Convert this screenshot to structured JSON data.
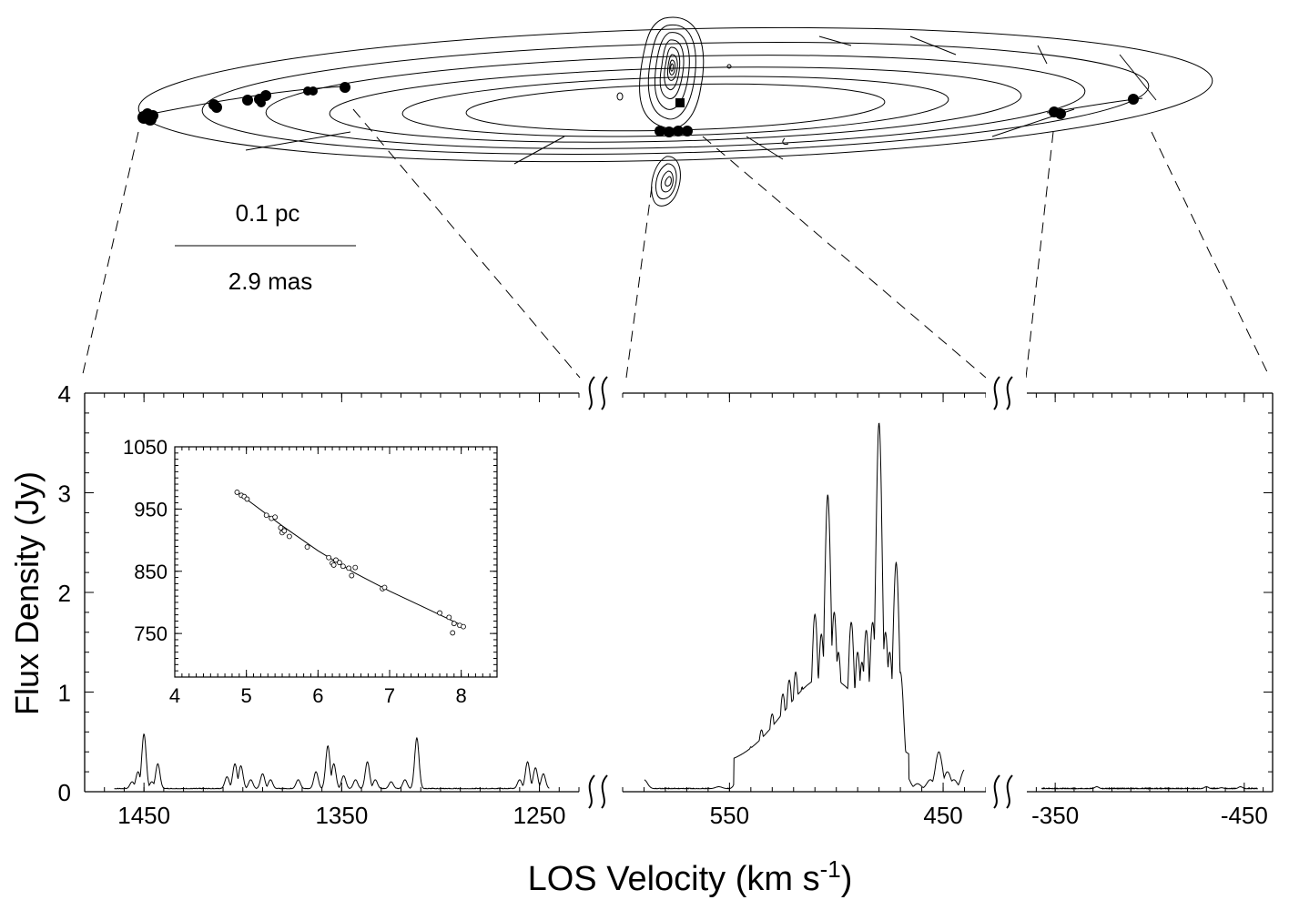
{
  "disk_panel": {
    "scale_bar_top": "0.1 pc",
    "scale_bar_bottom": "2.9 mas"
  },
  "chart_data": {
    "type": "line",
    "xlabel": "LOS Velocity (km s",
    "xlabel_sup": "-1",
    "xlabel_close": ")",
    "ylabel": "Flux Density (Jy)",
    "ylim": [
      0,
      4
    ],
    "yticks": [
      0,
      1,
      2,
      3,
      4
    ],
    "panels": [
      {
        "name": "redshifted",
        "xlim": [
          1480,
          1230
        ],
        "xticks": [
          "1450",
          "1350",
          "1250"
        ],
        "xtick_values": [
          1450,
          1350,
          1250
        ],
        "peaks": [
          {
            "x": 1456,
            "y": 0.1
          },
          {
            "x": 1453,
            "y": 0.2
          },
          {
            "x": 1450,
            "y": 0.58
          },
          {
            "x": 1446,
            "y": 0.1
          },
          {
            "x": 1443,
            "y": 0.28
          },
          {
            "x": 1408,
            "y": 0.15
          },
          {
            "x": 1404,
            "y": 0.28
          },
          {
            "x": 1401,
            "y": 0.26
          },
          {
            "x": 1396,
            "y": 0.12
          },
          {
            "x": 1390,
            "y": 0.18
          },
          {
            "x": 1386,
            "y": 0.12
          },
          {
            "x": 1372,
            "y": 0.12
          },
          {
            "x": 1363,
            "y": 0.2
          },
          {
            "x": 1357,
            "y": 0.46
          },
          {
            "x": 1354,
            "y": 0.28
          },
          {
            "x": 1349,
            "y": 0.16
          },
          {
            "x": 1343,
            "y": 0.12
          },
          {
            "x": 1337,
            "y": 0.3
          },
          {
            "x": 1333,
            "y": 0.12
          },
          {
            "x": 1325,
            "y": 0.1
          },
          {
            "x": 1318,
            "y": 0.12
          },
          {
            "x": 1312,
            "y": 0.54
          },
          {
            "x": 1260,
            "y": 0.12
          },
          {
            "x": 1256,
            "y": 0.3
          },
          {
            "x": 1252,
            "y": 0.24
          },
          {
            "x": 1248,
            "y": 0.18
          },
          {
            "x": 1242,
            "y": 0.14
          },
          {
            "x": 1238,
            "y": 0.16
          }
        ]
      },
      {
        "name": "systemic",
        "xlim": [
          600,
          430
        ],
        "xticks": [
          "550",
          "450"
        ],
        "xtick_values": [
          550,
          450
        ],
        "peaks": [
          {
            "x": 590,
            "y": 0.12
          },
          {
            "x": 555,
            "y": 0.05
          },
          {
            "x": 545,
            "y": 0.28
          },
          {
            "x": 540,
            "y": 0.45
          },
          {
            "x": 535,
            "y": 0.62
          },
          {
            "x": 530,
            "y": 0.78
          },
          {
            "x": 525,
            "y": 0.98
          },
          {
            "x": 522,
            "y": 1.12
          },
          {
            "x": 519,
            "y": 1.2
          },
          {
            "x": 516,
            "y": 1.05
          },
          {
            "x": 513,
            "y": 0.82
          },
          {
            "x": 510,
            "y": 1.78
          },
          {
            "x": 507,
            "y": 1.58
          },
          {
            "x": 504,
            "y": 2.98
          },
          {
            "x": 501,
            "y": 1.8
          },
          {
            "x": 499,
            "y": 1.4
          },
          {
            "x": 496,
            "y": 0.92
          },
          {
            "x": 493,
            "y": 1.7
          },
          {
            "x": 490,
            "y": 1.4
          },
          {
            "x": 488,
            "y": 1.3
          },
          {
            "x": 486,
            "y": 1.62
          },
          {
            "x": 483,
            "y": 1.7
          },
          {
            "x": 480,
            "y": 3.7
          },
          {
            "x": 477,
            "y": 1.6
          },
          {
            "x": 475,
            "y": 1.4
          },
          {
            "x": 472,
            "y": 2.3
          },
          {
            "x": 470,
            "y": 1.2
          },
          {
            "x": 467,
            "y": 0.15
          },
          {
            "x": 462,
            "y": 0.08
          },
          {
            "x": 456,
            "y": 0.12
          },
          {
            "x": 452,
            "y": 0.4
          },
          {
            "x": 448,
            "y": 0.2
          },
          {
            "x": 445,
            "y": 0.12
          },
          {
            "x": 440,
            "y": 0.22
          },
          {
            "x": 436,
            "y": 0.25
          },
          {
            "x": 433,
            "y": 0.12
          }
        ]
      },
      {
        "name": "blueshifted",
        "xlim": [
          -335,
          -465
        ],
        "xticks": [
          "-350",
          "-450"
        ],
        "xtick_values": [
          -350,
          -450
        ],
        "peaks": [
          {
            "x": -372,
            "y": 0.05
          },
          {
            "x": -400,
            "y": 0.03
          },
          {
            "x": -430,
            "y": 0.05
          },
          {
            "x": -438,
            "y": 0.04
          },
          {
            "x": -448,
            "y": 0.05
          }
        ]
      }
    ],
    "inset": {
      "type": "scatter",
      "xlim": [
        4,
        8.5
      ],
      "ylim": [
        680,
        1050
      ],
      "xticks": [
        "4",
        "5",
        "6",
        "7",
        "8"
      ],
      "xtick_values": [
        4,
        5,
        6,
        7,
        8
      ],
      "yticks": [
        "750",
        "850",
        "950",
        "1050"
      ],
      "ytick_values": [
        750,
        850,
        950,
        1050
      ],
      "points": [
        [
          4.87,
          977
        ],
        [
          4.93,
          972
        ],
        [
          4.97,
          970
        ],
        [
          5.01,
          966
        ],
        [
          5.28,
          940
        ],
        [
          5.35,
          935
        ],
        [
          5.4,
          937
        ],
        [
          5.48,
          920
        ],
        [
          5.5,
          912
        ],
        [
          5.53,
          915
        ],
        [
          5.6,
          906
        ],
        [
          5.85,
          889
        ],
        [
          6.15,
          872
        ],
        [
          6.2,
          863
        ],
        [
          6.25,
          868
        ],
        [
          6.22,
          860
        ],
        [
          6.3,
          864
        ],
        [
          6.35,
          858
        ],
        [
          6.43,
          855
        ],
        [
          6.47,
          843
        ],
        [
          6.52,
          856
        ],
        [
          6.9,
          822
        ],
        [
          6.93,
          824
        ],
        [
          7.7,
          783
        ],
        [
          7.83,
          776
        ],
        [
          7.88,
          751
        ],
        [
          7.9,
          766
        ],
        [
          7.98,
          763
        ],
        [
          8.03,
          761
        ]
      ],
      "fit": [
        [
          4.87,
          977
        ],
        [
          5.5,
          923
        ],
        [
          6.0,
          883
        ],
        [
          6.5,
          848
        ],
        [
          7.0,
          818
        ],
        [
          7.5,
          791
        ],
        [
          8.03,
          762
        ]
      ]
    }
  }
}
